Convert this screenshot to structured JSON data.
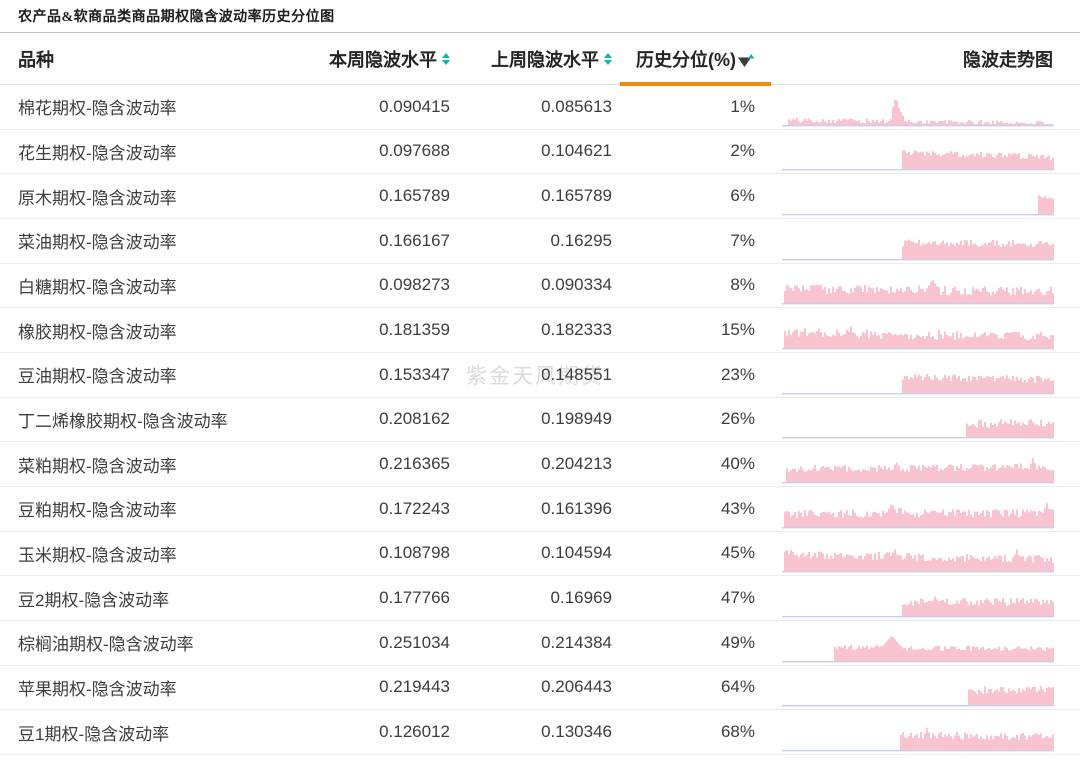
{
  "title": "农产品&软商品品类商品期权隐含波动率历史分位图",
  "watermark": "紫金天风期货",
  "colors": {
    "sort_teal": "#12B3AE",
    "accent_orange": "#F18A0E",
    "filter_icon_dark": "#3A3A3A",
    "spark_fill": "#F9C3CF",
    "spark_baseline": "#C8CFE8",
    "row_text": "#3D3D3D",
    "header_text": "#242424",
    "watermark_gray": "#DCDCDC"
  },
  "chart_data": {
    "type": "table",
    "title": "农产品&软商品类商品期权隐含波动率历史分位图",
    "columns": [
      "品种",
      "本周隐波水平",
      "上周隐波水平",
      "历史分位(%)",
      "隐波走势图"
    ],
    "sorted_column": "历史分位(%)",
    "sort_direction": "ascending",
    "rows": [
      {
        "name": "棉花期权-隐含波动率",
        "this_week": "0.090415",
        "last_week": "0.085613",
        "percentile": "1%",
        "spark": {
          "seed": 101,
          "start": 0.015,
          "b0": 0.16,
          "b1": 0.05,
          "noise": 0.1,
          "spikes": [
            [
              0.415,
              0.95
            ],
            [
              0.43,
              0.5
            ],
            [
              0.25,
              0.22,
              0.03
            ]
          ]
        }
      },
      {
        "name": "花生期权-隐含波动率",
        "this_week": "0.097688",
        "last_week": "0.104621",
        "percentile": "2%",
        "spark": {
          "seed": 102,
          "start": 0.44,
          "b0": 0.55,
          "b1": 0.38,
          "noise": 0.13,
          "spikes": [
            [
              0.45,
              0.66
            ],
            [
              0.905,
              0.5
            ]
          ]
        }
      },
      {
        "name": "原木期权-隐含波动率",
        "this_week": "0.165789",
        "last_week": "0.165789",
        "percentile": "6%",
        "spark": {
          "seed": 103,
          "start": 0.94,
          "b0": 0.55,
          "b1": 0.5,
          "noise": 0.1,
          "spikes": [
            [
              0.945,
              0.62
            ]
          ]
        }
      },
      {
        "name": "菜油期权-隐含波动率",
        "this_week": "0.166167",
        "last_week": "0.16295",
        "percentile": "7%",
        "spark": {
          "seed": 104,
          "start": 0.44,
          "b0": 0.52,
          "b1": 0.5,
          "noise": 0.15,
          "spikes": [
            [
              0.48,
              0.62
            ],
            [
              0.62,
              0.6
            ]
          ]
        }
      },
      {
        "name": "白糖期权-隐含波动率",
        "this_week": "0.098273",
        "last_week": "0.090334",
        "percentile": "8%",
        "spark": {
          "seed": 105,
          "start": 0.005,
          "b0": 0.45,
          "b1": 0.38,
          "noise": 0.2,
          "spikes": [
            [
              0.27,
              0.62
            ],
            [
              0.55,
              0.78,
              0.03
            ],
            [
              0.63,
              0.6
            ],
            [
              0.94,
              0.5
            ]
          ]
        }
      },
      {
        "name": "橡胶期权-隐含波动率",
        "this_week": "0.181359",
        "last_week": "0.182333",
        "percentile": "15%",
        "spark": {
          "seed": 106,
          "start": 0.005,
          "b0": 0.5,
          "b1": 0.36,
          "noise": 0.2,
          "spikes": [
            [
              0.07,
              0.62
            ],
            [
              0.1,
              0.58
            ],
            [
              0.25,
              0.72
            ],
            [
              0.77,
              0.55
            ],
            [
              0.87,
              0.45
            ]
          ]
        }
      },
      {
        "name": "豆油期权-隐含波动率",
        "this_week": "0.153347",
        "last_week": "0.148551",
        "percentile": "23%",
        "spark": {
          "seed": 107,
          "start": 0.44,
          "b0": 0.52,
          "b1": 0.44,
          "noise": 0.15,
          "spikes": [
            [
              0.73,
              0.6
            ]
          ]
        }
      },
      {
        "name": "丁二烯橡胶期权-隐含波动率",
        "this_week": "0.208162",
        "last_week": "0.198949",
        "percentile": "26%",
        "spark": {
          "seed": 108,
          "start": 0.67,
          "b0": 0.42,
          "b1": 0.46,
          "noise": 0.17,
          "spikes": [
            [
              0.8,
              0.62
            ]
          ]
        }
      },
      {
        "name": "菜粕期权-隐含波动率",
        "this_week": "0.216365",
        "last_week": "0.204213",
        "percentile": "40%",
        "spark": {
          "seed": 109,
          "start": 0.01,
          "b0": 0.42,
          "b1": 0.5,
          "noise": 0.16,
          "spikes": [
            [
              0.42,
              0.66
            ],
            [
              0.55,
              0.6
            ],
            [
              0.92,
              0.82
            ]
          ]
        }
      },
      {
        "name": "豆粕期权-隐含波动率",
        "this_week": "0.172243",
        "last_week": "0.161396",
        "percentile": "43%",
        "spark": {
          "seed": 110,
          "start": 0.005,
          "b0": 0.42,
          "b1": 0.45,
          "noise": 0.18,
          "spikes": [
            [
              0.4,
              0.8,
              0.025
            ],
            [
              0.43,
              0.72
            ],
            [
              0.91,
              0.6
            ],
            [
              0.97,
              0.82
            ]
          ]
        }
      },
      {
        "name": "玉米期权-隐含波动率",
        "this_week": "0.108798",
        "last_week": "0.104594",
        "percentile": "45%",
        "spark": {
          "seed": 111,
          "start": 0.005,
          "b0": 0.55,
          "b1": 0.36,
          "noise": 0.18,
          "spikes": [
            [
              0.015,
              0.7
            ],
            [
              0.41,
              0.76
            ],
            [
              0.43,
              0.6
            ],
            [
              0.86,
              0.72
            ],
            [
              0.95,
              0.5
            ]
          ]
        }
      },
      {
        "name": "豆2期权-隐含波动率",
        "this_week": "0.177766",
        "last_week": "0.16969",
        "percentile": "47%",
        "spark": {
          "seed": 112,
          "start": 0.44,
          "b0": 0.46,
          "b1": 0.46,
          "noise": 0.16,
          "spikes": [
            [
              0.56,
              0.68
            ],
            [
              0.67,
              0.58
            ]
          ]
        }
      },
      {
        "name": "棕榈油期权-隐含波动率",
        "this_week": "0.251034",
        "last_week": "0.214384",
        "percentile": "49%",
        "spark": {
          "seed": 113,
          "start": 0.19,
          "b0": 0.44,
          "b1": 0.4,
          "noise": 0.11,
          "spikes": [
            [
              0.4,
              0.85,
              0.045
            ],
            [
              0.345,
              0.55,
              0.03
            ],
            [
              0.87,
              0.5
            ],
            [
              0.95,
              0.47
            ]
          ]
        }
      },
      {
        "name": "苹果期权-隐含波动率",
        "this_week": "0.219443",
        "last_week": "0.206443",
        "percentile": "64%",
        "spark": {
          "seed": 114,
          "start": 0.68,
          "b0": 0.48,
          "b1": 0.52,
          "noise": 0.17,
          "spikes": [
            [
              0.9,
              0.66
            ]
          ]
        }
      },
      {
        "name": "豆1期权-隐含波动率",
        "this_week": "0.126012",
        "last_week": "0.130346",
        "percentile": "68%",
        "spark": {
          "seed": 115,
          "start": 0.43,
          "b0": 0.48,
          "b1": 0.42,
          "noise": 0.16,
          "spikes": [
            [
              0.53,
              0.76
            ],
            [
              0.64,
              0.62
            ],
            [
              0.88,
              0.58
            ]
          ]
        }
      }
    ]
  }
}
